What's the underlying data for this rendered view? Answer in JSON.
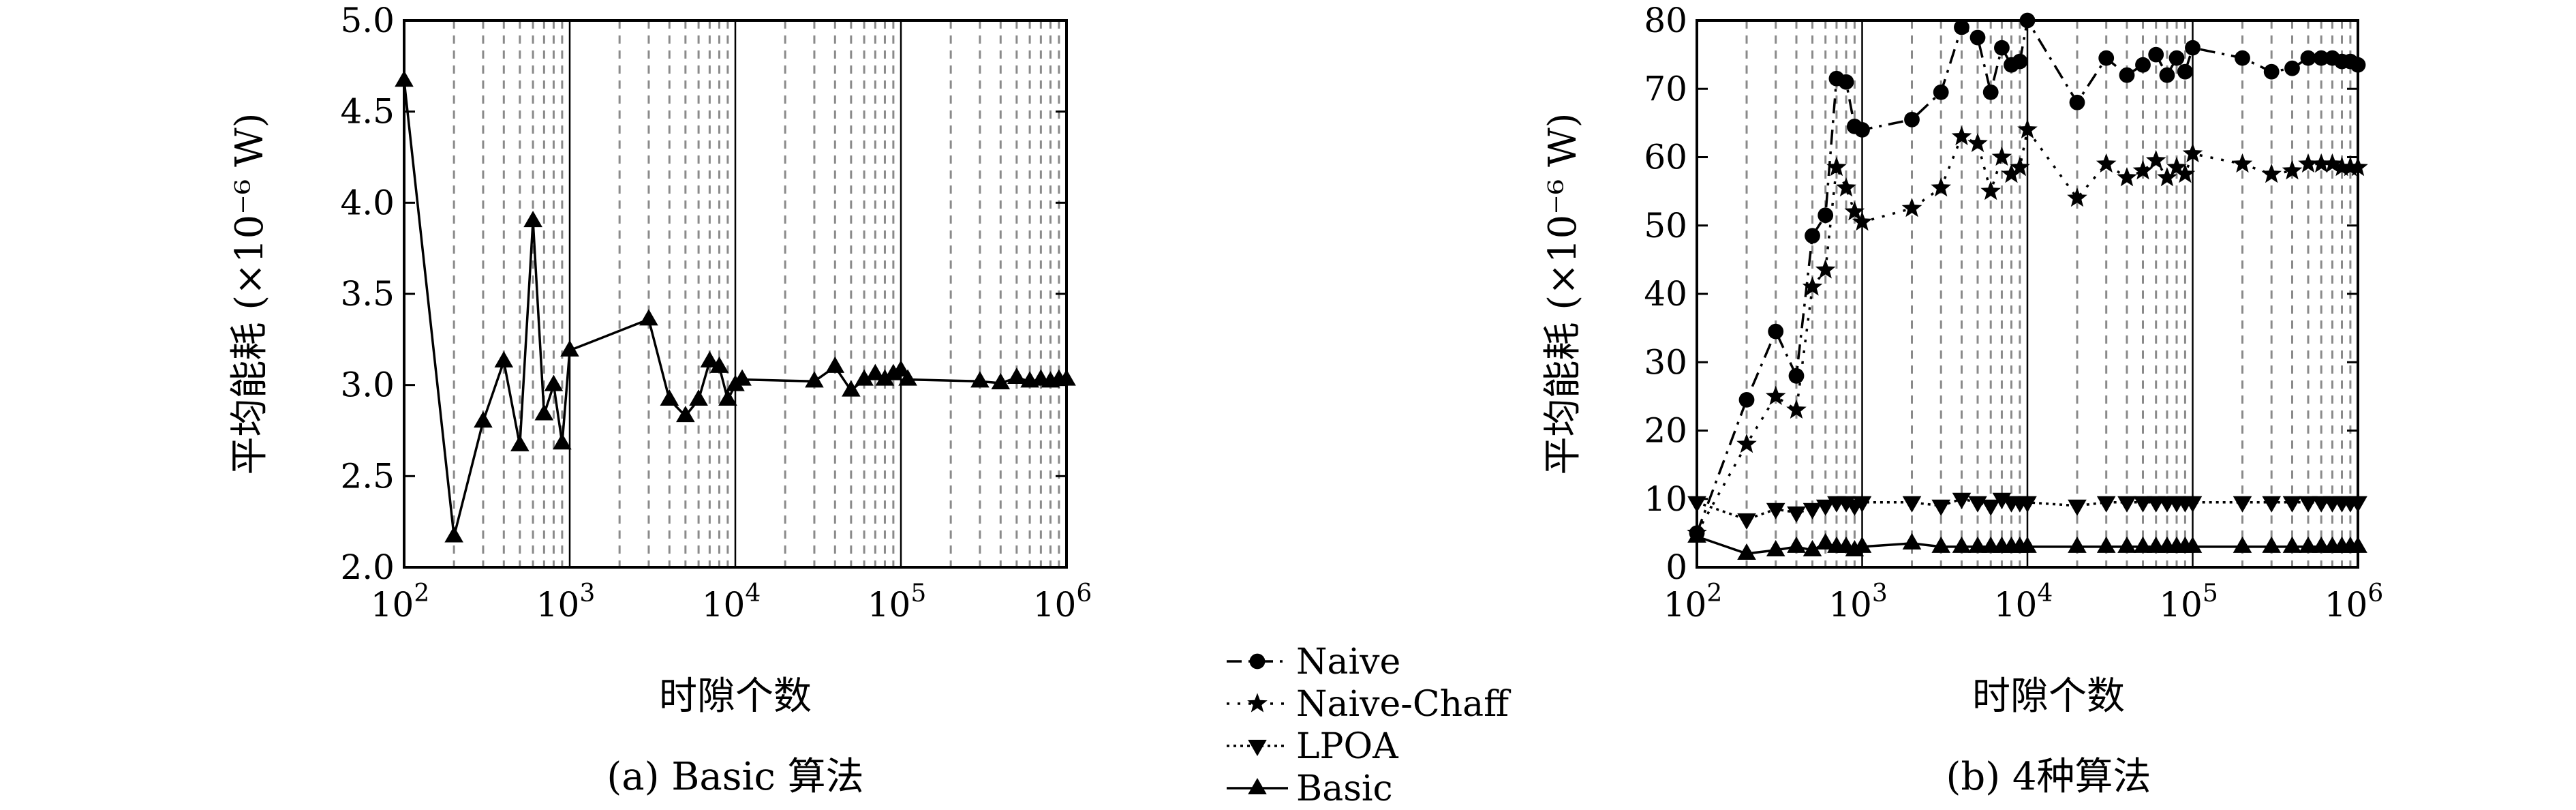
{
  "chart_data": [
    {
      "type": "line",
      "panel": "a",
      "caption": "(a) Basic 算法",
      "xlabel": "时隙个数",
      "ylabel": "平均能耗 (×10⁻⁶ W)",
      "x_scale": "log",
      "xlim": [
        100,
        1000000
      ],
      "ylim": [
        2.0,
        5.0
      ],
      "x_ticks": [
        [
          "10",
          "2"
        ],
        [
          "10",
          "3"
        ],
        [
          "10",
          "4"
        ],
        [
          "10",
          "5"
        ],
        [
          "10",
          "6"
        ]
      ],
      "y_ticks": [
        "2.0",
        "2.5",
        "3.0",
        "3.5",
        "4.0",
        "4.5",
        "5.0"
      ],
      "grid": "vertical dashed",
      "series": [
        {
          "name": "Basic",
          "marker": "triangle-up",
          "line": "solid",
          "points": [
            [
              100,
              4.67
            ],
            [
              200,
              2.17
            ],
            [
              300,
              2.8
            ],
            [
              400,
              3.13
            ],
            [
              500,
              2.67
            ],
            [
              600,
              3.9
            ],
            [
              700,
              2.84
            ],
            [
              800,
              3.0
            ],
            [
              900,
              2.68
            ],
            [
              1000,
              3.19
            ],
            [
              3000,
              3.36
            ],
            [
              4000,
              2.92
            ],
            [
              5000,
              2.83
            ],
            [
              6000,
              2.92
            ],
            [
              7000,
              3.13
            ],
            [
              8000,
              3.1
            ],
            [
              9000,
              2.92
            ],
            [
              10000,
              3.0
            ],
            [
              11000,
              3.03
            ],
            [
              30000,
              3.02
            ],
            [
              40000,
              3.1
            ],
            [
              50000,
              2.97
            ],
            [
              60000,
              3.03
            ],
            [
              70000,
              3.06
            ],
            [
              80000,
              3.03
            ],
            [
              90000,
              3.06
            ],
            [
              100000,
              3.08
            ],
            [
              110000,
              3.03
            ],
            [
              300000,
              3.02
            ],
            [
              400000,
              3.01
            ],
            [
              500000,
              3.04
            ],
            [
              600000,
              3.02
            ],
            [
              700000,
              3.03
            ],
            [
              800000,
              3.02
            ],
            [
              900000,
              3.03
            ],
            [
              1000000,
              3.03
            ]
          ]
        }
      ]
    },
    {
      "type": "line",
      "panel": "b",
      "caption": "(b) 4种算法",
      "xlabel": "时隙个数",
      "ylabel": "平均能耗 (×10⁻⁶ W)",
      "x_scale": "log",
      "xlim": [
        100,
        1000000
      ],
      "ylim": [
        0,
        80
      ],
      "x_ticks": [
        [
          "10",
          "2"
        ],
        [
          "10",
          "3"
        ],
        [
          "10",
          "4"
        ],
        [
          "10",
          "5"
        ],
        [
          "10",
          "6"
        ]
      ],
      "y_ticks": [
        "0",
        "10",
        "20",
        "30",
        "40",
        "50",
        "60",
        "70",
        "80"
      ],
      "grid": "vertical dashed",
      "legend_position": "left of panel b",
      "series": [
        {
          "name": "Naive",
          "marker": "circle",
          "line": "dash-dot",
          "points": [
            [
              100,
              5
            ],
            [
              200,
              24.5
            ],
            [
              300,
              34.5
            ],
            [
              400,
              28
            ],
            [
              500,
              48.5
            ],
            [
              600,
              51.5
            ],
            [
              700,
              71.5
            ],
            [
              800,
              71
            ],
            [
              900,
              64.5
            ],
            [
              1000,
              64
            ],
            [
              2000,
              65.5
            ],
            [
              3000,
              69.5
            ],
            [
              4000,
              79
            ],
            [
              5000,
              77.5
            ],
            [
              6000,
              69.5
            ],
            [
              7000,
              76
            ],
            [
              8000,
              73.5
            ],
            [
              9000,
              74
            ],
            [
              10000,
              80
            ],
            [
              20000,
              68
            ],
            [
              30000,
              74.5
            ],
            [
              40000,
              72
            ],
            [
              50000,
              73.5
            ],
            [
              60000,
              75
            ],
            [
              70000,
              72
            ],
            [
              80000,
              74.5
            ],
            [
              90000,
              72.5
            ],
            [
              100000,
              76
            ],
            [
              200000,
              74.5
            ],
            [
              300000,
              72.5
            ],
            [
              400000,
              73
            ],
            [
              500000,
              74.5
            ],
            [
              600000,
              74.5
            ],
            [
              700000,
              74.5
            ],
            [
              800000,
              74
            ],
            [
              900000,
              74
            ],
            [
              1000000,
              73.5
            ]
          ]
        },
        {
          "name": "Naive-Chaff",
          "marker": "star",
          "line": "dotted",
          "points": [
            [
              100,
              5
            ],
            [
              200,
              18
            ],
            [
              300,
              25
            ],
            [
              400,
              23
            ],
            [
              500,
              41
            ],
            [
              600,
              43.5
            ],
            [
              700,
              58.5
            ],
            [
              800,
              55.5
            ],
            [
              900,
              52
            ],
            [
              1000,
              50.5
            ],
            [
              2000,
              52.5
            ],
            [
              3000,
              55.5
            ],
            [
              4000,
              63
            ],
            [
              5000,
              62
            ],
            [
              6000,
              55
            ],
            [
              7000,
              60
            ],
            [
              8000,
              57.5
            ],
            [
              9000,
              58.5
            ],
            [
              10000,
              64
            ],
            [
              20000,
              54
            ],
            [
              30000,
              59
            ],
            [
              40000,
              57
            ],
            [
              50000,
              58
            ],
            [
              60000,
              59.5
            ],
            [
              70000,
              57
            ],
            [
              80000,
              58.5
            ],
            [
              90000,
              57.5
            ],
            [
              100000,
              60.5
            ],
            [
              200000,
              59
            ],
            [
              300000,
              57.5
            ],
            [
              400000,
              58
            ],
            [
              500000,
              59
            ],
            [
              600000,
              59
            ],
            [
              700000,
              59
            ],
            [
              800000,
              58.5
            ],
            [
              900000,
              58.5
            ],
            [
              1000000,
              58.5
            ]
          ]
        },
        {
          "name": "LPOA",
          "marker": "triangle-down",
          "line": "dense dotted",
          "points": [
            [
              100,
              9.5
            ],
            [
              200,
              7
            ],
            [
              300,
              8.5
            ],
            [
              400,
              8
            ],
            [
              500,
              8.5
            ],
            [
              600,
              9
            ],
            [
              700,
              9.5
            ],
            [
              800,
              9.5
            ],
            [
              900,
              9
            ],
            [
              1000,
              9.5
            ],
            [
              2000,
              9.5
            ],
            [
              3000,
              9
            ],
            [
              4000,
              10
            ],
            [
              5000,
              9.5
            ],
            [
              6000,
              9
            ],
            [
              7000,
              10
            ],
            [
              8000,
              9.5
            ],
            [
              9000,
              9.5
            ],
            [
              10000,
              9.5
            ],
            [
              20000,
              9
            ],
            [
              30000,
              9.5
            ],
            [
              40000,
              9.5
            ],
            [
              50000,
              9.5
            ],
            [
              60000,
              9.5
            ],
            [
              70000,
              9.5
            ],
            [
              80000,
              9.5
            ],
            [
              90000,
              9.5
            ],
            [
              100000,
              9.5
            ],
            [
              200000,
              9.5
            ],
            [
              300000,
              9.5
            ],
            [
              400000,
              9.5
            ],
            [
              500000,
              9.5
            ],
            [
              600000,
              9.5
            ],
            [
              700000,
              9.5
            ],
            [
              800000,
              9.5
            ],
            [
              900000,
              9.5
            ],
            [
              1000000,
              9.5
            ]
          ]
        },
        {
          "name": "Basic",
          "marker": "triangle-up",
          "line": "solid",
          "points": [
            [
              100,
              4.5
            ],
            [
              200,
              2
            ],
            [
              300,
              2.5
            ],
            [
              400,
              3
            ],
            [
              500,
              2.5
            ],
            [
              600,
              3.5
            ],
            [
              700,
              3
            ],
            [
              800,
              3
            ],
            [
              900,
              2.5
            ],
            [
              1000,
              3
            ],
            [
              2000,
              3.5
            ],
            [
              3000,
              3
            ],
            [
              4000,
              3
            ],
            [
              5000,
              3
            ],
            [
              6000,
              3
            ],
            [
              7000,
              3
            ],
            [
              8000,
              3
            ],
            [
              9000,
              3
            ],
            [
              10000,
              3
            ],
            [
              20000,
              3
            ],
            [
              30000,
              3
            ],
            [
              40000,
              3
            ],
            [
              50000,
              3
            ],
            [
              60000,
              3
            ],
            [
              70000,
              3
            ],
            [
              80000,
              3
            ],
            [
              90000,
              3
            ],
            [
              100000,
              3
            ],
            [
              200000,
              3
            ],
            [
              300000,
              3
            ],
            [
              400000,
              3
            ],
            [
              500000,
              3
            ],
            [
              600000,
              3
            ],
            [
              700000,
              3
            ],
            [
              800000,
              3
            ],
            [
              900000,
              3
            ],
            [
              1000000,
              3
            ]
          ]
        }
      ]
    }
  ],
  "legend": [
    {
      "label": "Naive",
      "marker": "circle",
      "line": "dash-dot"
    },
    {
      "label": "Naive-Chaff",
      "marker": "star",
      "line": "dotted"
    },
    {
      "label": "LPOA",
      "marker": "triangle-down",
      "line": "dense dotted"
    },
    {
      "label": "Basic",
      "marker": "triangle-up",
      "line": "solid"
    }
  ]
}
